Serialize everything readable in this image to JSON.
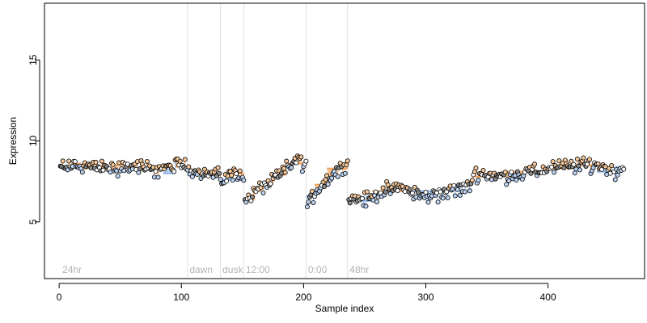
{
  "chart_data": {
    "type": "scatter",
    "xlabel": "Sample index",
    "ylabel": "Expression",
    "xlim": [
      -12,
      479
    ],
    "ylim": [
      1.5,
      18.5
    ],
    "x_ticks": [
      0,
      100,
      200,
      300,
      400
    ],
    "y_ticks": [
      5,
      10,
      15
    ],
    "grid": false,
    "colors": {
      "fit_orange": "#f0a35e",
      "fit_blue": "#8db4e8",
      "divider": "#e0e0e0",
      "point_outline": "#000000",
      "region_label": "#b3b3b3"
    },
    "regions": [
      {
        "label": "24hr",
        "x": 2
      },
      {
        "label": "dawn",
        "x": 106
      },
      {
        "label": "dusk",
        "x": 133
      },
      {
        "label": "12:00",
        "x": 152
      },
      {
        "label": "0:00",
        "x": 203
      },
      {
        "label": "48hr",
        "x": 237
      }
    ],
    "dividers": [
      105,
      132,
      151,
      202,
      236
    ],
    "fit_segments": [
      {
        "x": [
          1,
          10
        ],
        "y": [
          8.4,
          8.4
        ],
        "color": "orange"
      },
      {
        "x": [
          10,
          18
        ],
        "y": [
          8.6,
          8.6
        ],
        "color": "orange"
      },
      {
        "x": [
          18,
          45
        ],
        "y": [
          8.3,
          8.3
        ],
        "color": "orange"
      },
      {
        "x": [
          45,
          60
        ],
        "y": [
          8.5,
          8.5
        ],
        "color": "orange"
      },
      {
        "x": [
          60,
          85
        ],
        "y": [
          8.2,
          8.2
        ],
        "color": "orange"
      },
      {
        "x": [
          85,
          95
        ],
        "y": [
          8.0,
          8.0
        ],
        "color": "blue"
      },
      {
        "x": [
          95,
          105
        ],
        "y": [
          8.4,
          8.4
        ],
        "color": "orange"
      },
      {
        "x": [
          105,
          113
        ],
        "y": [
          8.2,
          8.2
        ],
        "color": "orange"
      },
      {
        "x": [
          113,
          132
        ],
        "y": [
          7.9,
          7.9
        ],
        "color": "orange"
      },
      {
        "x": [
          132,
          141
        ],
        "y": [
          7.6,
          7.6
        ],
        "color": "blue"
      },
      {
        "x": [
          141,
          151
        ],
        "y": [
          8.0,
          8.0
        ],
        "color": "orange"
      },
      {
        "x": [
          151,
          160
        ],
        "y": [
          6.4,
          6.4
        ],
        "color": "orange"
      },
      {
        "x": [
          160,
          165
        ],
        "y": [
          6.9,
          6.9
        ],
        "color": "orange"
      },
      {
        "x": [
          165,
          175
        ],
        "y": [
          7.3,
          7.3
        ],
        "color": "orange"
      },
      {
        "x": [
          175,
          185
        ],
        "y": [
          7.9,
          7.9
        ],
        "color": "orange"
      },
      {
        "x": [
          185,
          202
        ],
        "y": [
          8.6,
          8.6
        ],
        "color": "orange"
      },
      {
        "x": [
          202,
          209
        ],
        "y": [
          6.6,
          6.6
        ],
        "color": "blue"
      },
      {
        "x": [
          209,
          219
        ],
        "y": [
          7.3,
          7.3
        ],
        "color": "orange"
      },
      {
        "x": [
          219,
          236
        ],
        "y": [
          8.3,
          8.3
        ],
        "color": "orange"
      },
      {
        "x": [
          236,
          256
        ],
        "y": [
          6.3,
          6.3
        ],
        "color": "blue"
      },
      {
        "x": [
          256,
          290
        ],
        "y": [
          6.9,
          6.9
        ],
        "color": "orange"
      },
      {
        "x": [
          290,
          320
        ],
        "y": [
          6.9,
          6.9
        ],
        "color": "blue"
      },
      {
        "x": [
          320,
          338
        ],
        "y": [
          7.3,
          7.3
        ],
        "color": "blue"
      },
      {
        "x": [
          338,
          365
        ],
        "y": [
          7.8,
          7.8
        ],
        "color": "orange"
      },
      {
        "x": [
          365,
          400
        ],
        "y": [
          8.1,
          8.1
        ],
        "color": "orange"
      },
      {
        "x": [
          400,
          420
        ],
        "y": [
          8.3,
          8.3
        ],
        "color": "orange"
      },
      {
        "x": [
          420,
          440
        ],
        "y": [
          8.5,
          8.5
        ],
        "color": "orange"
      },
      {
        "x": [
          440,
          455
        ],
        "y": [
          8.1,
          8.1
        ],
        "color": "blue"
      },
      {
        "x": [
          455,
          462
        ],
        "y": [
          8.4,
          8.4
        ],
        "color": "blue"
      }
    ],
    "trend_points": [
      [
        1,
        8.4
      ],
      [
        20,
        8.5
      ],
      [
        40,
        8.3
      ],
      [
        60,
        8.4
      ],
      [
        80,
        8.2
      ],
      [
        100,
        8.5
      ],
      [
        105,
        8.3
      ],
      [
        115,
        8.1
      ],
      [
        132,
        7.9
      ],
      [
        133,
        7.5
      ],
      [
        140,
        7.9
      ],
      [
        151,
        8.0
      ],
      [
        152,
        6.2
      ],
      [
        160,
        6.8
      ],
      [
        170,
        7.3
      ],
      [
        180,
        7.9
      ],
      [
        195,
        8.9
      ],
      [
        202,
        8.4
      ],
      [
        203,
        6.0
      ],
      [
        210,
        6.9
      ],
      [
        220,
        7.7
      ],
      [
        235,
        8.7
      ],
      [
        236,
        8.5
      ],
      [
        237,
        6.6
      ],
      [
        250,
        6.3
      ],
      [
        265,
        6.9
      ],
      [
        280,
        7.1
      ],
      [
        300,
        6.5
      ],
      [
        320,
        6.9
      ],
      [
        335,
        7.1
      ],
      [
        340,
        8.0
      ],
      [
        360,
        7.8
      ],
      [
        380,
        8.0
      ],
      [
        400,
        8.3
      ],
      [
        420,
        8.5
      ],
      [
        440,
        8.5
      ],
      [
        455,
        8.1
      ],
      [
        462,
        8.3
      ]
    ]
  }
}
